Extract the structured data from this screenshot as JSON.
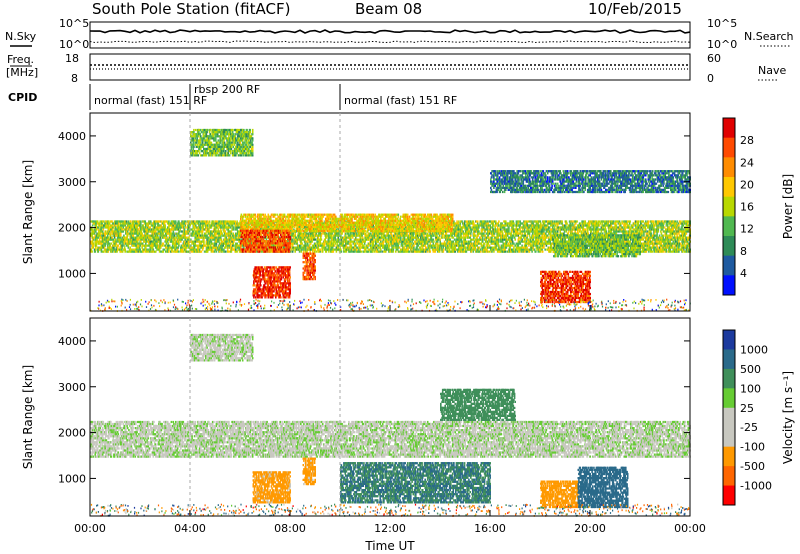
{
  "header": {
    "station": "South Pole Station (fitACF)",
    "beam": "Beam 08",
    "date": "10/Feb/2015"
  },
  "aux_panels": {
    "nsky_label": "N.Sky",
    "nsearch_label": "N.Search",
    "noise_ticks": [
      "10^5",
      "10^0"
    ],
    "freq_label_line1": "Freq.",
    "freq_label_line2": "[MHz]",
    "freq_ticks": [
      "18",
      "8"
    ],
    "nave_label": "Nave",
    "nave_ticks": [
      "60",
      "0"
    ],
    "cpid_label": "CPID"
  },
  "cpid_segments": [
    {
      "label": "normal (fast) 151 RF",
      "start_hour": 0.0
    },
    {
      "label": "rbsp 200 RF",
      "start_hour": 4.0
    },
    {
      "label": "normal (fast) 151 RF",
      "start_hour": 10.0
    }
  ],
  "colorbars": {
    "power": {
      "label": "Power [dB]",
      "ticks": [
        "28",
        "24",
        "20",
        "16",
        "12",
        "8",
        "4"
      ],
      "colors": [
        "#e00000",
        "#ff4a00",
        "#ff8c00",
        "#ffc800",
        "#b8d800",
        "#50b850",
        "#2e8b57",
        "#1e5aa0",
        "#0010ff"
      ]
    },
    "velocity": {
      "label": "Velocity [m s⁻¹]",
      "ticks": [
        "1000",
        "500",
        "100",
        "25",
        "-25",
        "-100",
        "-500",
        "-1000"
      ],
      "colors": [
        "#1c3a9e",
        "#2a6a8a",
        "#3f8f5a",
        "#66cc33",
        "#c8c8c0",
        "#c8c8c0",
        "#ff9900",
        "#ff6600",
        "#ff0000"
      ]
    }
  },
  "chart_data": [
    {
      "type": "heatmap",
      "title": "",
      "xlabel": "Time UT",
      "ylabel": "Slant Range [km]",
      "xlim": [
        0,
        24
      ],
      "ylim": [
        180,
        4500
      ],
      "x_ticks": [
        "00:00",
        "04:00",
        "08:00",
        "12:00",
        "16:00",
        "20:00",
        "00:00"
      ],
      "y_ticks": [
        1000,
        2000,
        3000,
        4000
      ],
      "colorbar": "Power [dB]",
      "scatter_bands": [
        {
          "t0": 0.0,
          "t1": 24.0,
          "r0": 1500,
          "r1": 2200,
          "value": 14
        },
        {
          "t0": 6.0,
          "t1": 14.5,
          "r0": 1950,
          "r1": 2350,
          "value": 18
        },
        {
          "t0": 6.0,
          "t1": 8.0,
          "r0": 1500,
          "r1": 2000,
          "value": 26
        },
        {
          "t0": 6.5,
          "t1": 8.0,
          "r0": 500,
          "r1": 1200,
          "value": 28
        },
        {
          "t0": 8.5,
          "t1": 9.0,
          "r0": 900,
          "r1": 1500,
          "value": 26
        },
        {
          "t0": 4.0,
          "t1": 6.5,
          "r0": 3600,
          "r1": 4200,
          "value": 12
        },
        {
          "t0": 18.0,
          "t1": 20.0,
          "r0": 400,
          "r1": 1100,
          "value": 28
        },
        {
          "t0": 18.5,
          "t1": 22.0,
          "r0": 1400,
          "r1": 1900,
          "value": 12
        },
        {
          "t0": 16.0,
          "t1": 24.0,
          "r0": 2800,
          "r1": 3300,
          "value": 6
        }
      ]
    },
    {
      "type": "heatmap",
      "title": "",
      "xlabel": "Time UT",
      "ylabel": "Slant Range [km]",
      "xlim": [
        0,
        24
      ],
      "ylim": [
        180,
        4500
      ],
      "x_ticks": [
        "00:00",
        "04:00",
        "08:00",
        "12:00",
        "16:00",
        "20:00",
        "00:00"
      ],
      "y_ticks": [
        1000,
        2000,
        3000,
        4000
      ],
      "colorbar": "Velocity [m s⁻¹]",
      "scatter_bands": [
        {
          "t0": 0.0,
          "t1": 24.0,
          "r0": 1500,
          "r1": 2300,
          "value": 0
        },
        {
          "t0": 4.0,
          "t1": 6.5,
          "r0": 3600,
          "r1": 4200,
          "value": 0
        },
        {
          "t0": 6.5,
          "t1": 8.0,
          "r0": 500,
          "r1": 1200,
          "value": -150
        },
        {
          "t0": 8.5,
          "t1": 9.0,
          "r0": 900,
          "r1": 1500,
          "value": -150
        },
        {
          "t0": 10.0,
          "t1": 16.0,
          "r0": 500,
          "r1": 1400,
          "value": 300
        },
        {
          "t0": 18.0,
          "t1": 19.5,
          "r0": 400,
          "r1": 1000,
          "value": -200
        },
        {
          "t0": 19.5,
          "t1": 21.5,
          "r0": 400,
          "r1": 1300,
          "value": 600
        },
        {
          "t0": 14.0,
          "t1": 17.0,
          "r0": 2300,
          "r1": 3000,
          "value": 200
        }
      ]
    }
  ]
}
